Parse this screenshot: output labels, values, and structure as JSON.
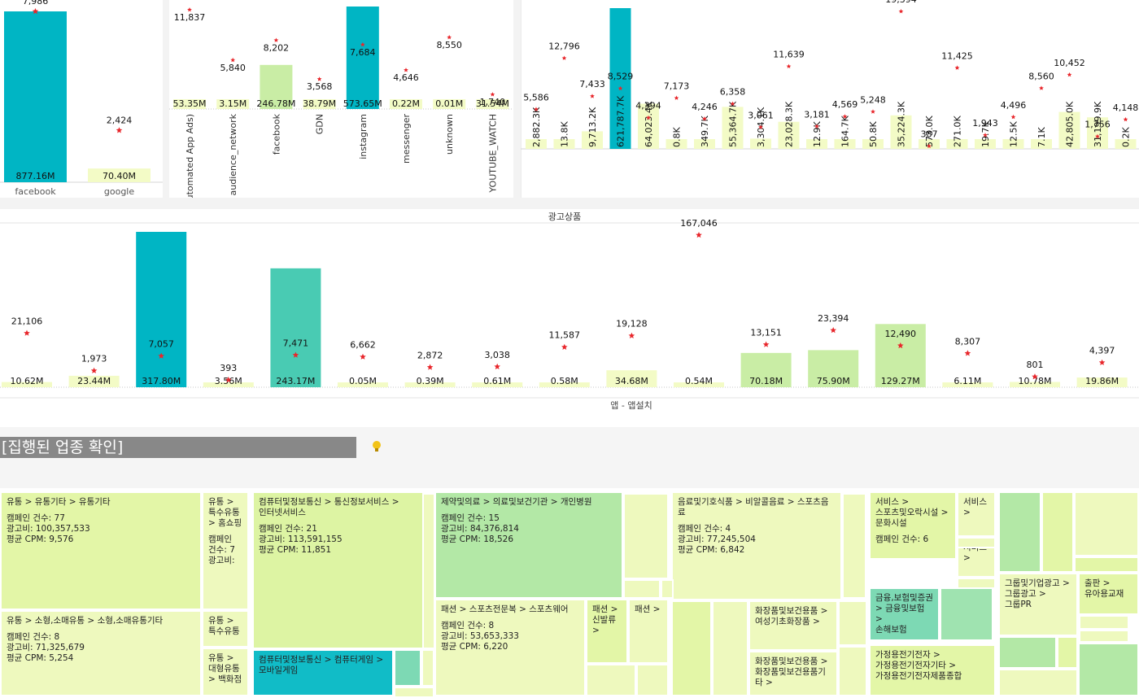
{
  "colors": {
    "teal": "#00b5c4",
    "mint": "#49cbb3",
    "light_green": "#c9eda5",
    "pale_yellow": "#f3fbc6",
    "star": "#e8262b",
    "tm_lime": "#e3f6a7",
    "tm_pale": "#eef9be",
    "tm_green": "#b3e8a6",
    "tm_mint": "#7dd9b4",
    "tm_teal": "#11bcc7"
  },
  "chart_data": [
    {
      "type": "bar",
      "id": "platform",
      "categories": [
        "facebook",
        "google"
      ],
      "values": [
        877.16,
        70.4
      ],
      "value_labels": [
        "877.16M",
        "70.40M"
      ],
      "secondary": [
        7986,
        2424
      ],
      "secondary_labels": [
        "7,986",
        "2,424"
      ],
      "bar_colors": [
        "#00b5c4",
        "#f3fbc6"
      ]
    },
    {
      "type": "bar",
      "id": "placement",
      "categories": [
        "All (Automated App Ads)",
        "audience_network",
        "facebook",
        "GDN",
        "instagram",
        "messenger",
        "unknown",
        "YOUTUBE_WATCH"
      ],
      "values": [
        53.35,
        3.15,
        246.78,
        38.79,
        573.65,
        0.22,
        0.01,
        31.54
      ],
      "value_labels": [
        "53.35M",
        "3.15M",
        "246.78M",
        "38.79M",
        "573.65M",
        "0.22M",
        "0.01M",
        "31.54M"
      ],
      "secondary": [
        11837,
        5840,
        8202,
        3568,
        7684,
        4646,
        8550,
        1740
      ],
      "secondary_labels": [
        "11,837",
        "5,840",
        "8,202",
        "3,568",
        "7,684",
        "4,646",
        "8,550",
        "1,740"
      ],
      "bar_colors": [
        "#f3fbc6",
        "#f3fbc6",
        "#c9eda5",
        "#f3fbc6",
        "#00b5c4",
        "#f3fbc6",
        "#f3fbc6",
        "#f3fbc6"
      ]
    },
    {
      "type": "bar",
      "id": "detail",
      "value_labels": [
        "2,882.3K",
        "13.8K",
        "9,713.2K",
        "621,787.7K",
        "64,023.4K",
        "0.8K",
        "349.7K",
        "55,364.7K",
        "3,304.1K",
        "23,028.3K",
        "12.9K",
        "164.7K",
        "50.8K",
        "35,224.3K",
        "573.0K",
        "271.0K",
        "19.7K",
        "12.5K",
        "7.1K",
        "42,805.0K",
        "31,199.9K",
        "0.2K"
      ],
      "values": [
        2882.3,
        13.8,
        9713.2,
        621787.7,
        64023.4,
        0.8,
        349.7,
        55364.7,
        3304.1,
        23028.3,
        12.9,
        164.7,
        50.8,
        35224.3,
        573.0,
        271.0,
        19.7,
        12.5,
        7.1,
        42805.0,
        31199.9,
        0.2
      ],
      "secondary": [
        5586,
        12796,
        7433,
        8529,
        4394,
        7173,
        4246,
        6358,
        3061,
        11639,
        3181,
        4569,
        5248,
        19394,
        387,
        11425,
        1943,
        4496,
        8560,
        10452,
        1756,
        4148
      ],
      "secondary_labels": [
        "5,586",
        "12,796",
        "7,433",
        "8,529",
        "4,394",
        "7,173",
        "4,246",
        "6,358",
        "3,061",
        "11,639",
        "3,181",
        "4,569",
        "5,248",
        "19,394",
        "387",
        "11,425",
        "1,943",
        "4,496",
        "8,560",
        "10,452",
        "1,756",
        "4,148"
      ],
      "bar_colors": [
        "#f3fbc6",
        "#f3fbc6",
        "#f3fbc6",
        "#00b5c4",
        "#f3fbc6",
        "#f3fbc6",
        "#f3fbc6",
        "#f3fbc6",
        "#f3fbc6",
        "#f3fbc6",
        "#f3fbc6",
        "#f3fbc6",
        "#f3fbc6",
        "#f3fbc6",
        "#f3fbc6",
        "#f3fbc6",
        "#f3fbc6",
        "#f3fbc6",
        "#f3fbc6",
        "#f3fbc6",
        "#f3fbc6",
        "#f3fbc6"
      ]
    },
    {
      "type": "bar",
      "id": "ad_product",
      "title": "광고상품",
      "xlabel": "앱 - 앱설치",
      "values": [
        10.62,
        23.44,
        317.8,
        3.56,
        243.17,
        0.05,
        0.39,
        0.61,
        0.58,
        34.68,
        0.54,
        70.18,
        75.9,
        129.27,
        6.11,
        10.78,
        19.86
      ],
      "value_labels": [
        "10.62M",
        "23.44M",
        "317.80M",
        "3.56M",
        "243.17M",
        "0.05M",
        "0.39M",
        "0.61M",
        "0.58M",
        "34.68M",
        "0.54M",
        "70.18M",
        "75.90M",
        "129.27M",
        "6.11M",
        "10.78M",
        "19.86M"
      ],
      "secondary": [
        21106,
        1973,
        7057,
        393,
        7471,
        6662,
        2872,
        3038,
        11587,
        19128,
        167046,
        13151,
        23394,
        12490,
        8307,
        801,
        4397
      ],
      "secondary_labels": [
        "21,106",
        "1,973",
        "7,057",
        "393",
        "7,471",
        "6,662",
        "2,872",
        "3,038",
        "11,587",
        "19,128",
        "167,046",
        "13,151",
        "23,394",
        "12,490",
        "8,307",
        "801",
        "4,397"
      ],
      "bar_colors": [
        "#f3fbc6",
        "#f3fbc6",
        "#00b5c4",
        "#f3fbc6",
        "#49cbb3",
        "#f3fbc6",
        "#f3fbc6",
        "#f3fbc6",
        "#f3fbc6",
        "#f3fbc6",
        "#f3fbc6",
        "#c9eda5",
        "#c9eda5",
        "#c9eda5",
        "#f3fbc6",
        "#f3fbc6",
        "#f3fbc6"
      ]
    }
  ],
  "section": {
    "title": "[집행된 업종 확인]",
    "bulb_icon": "lightbulb-icon"
  },
  "treemap": {
    "cells": [
      {
        "path": "유통 > 유통기타 > 유통기타",
        "campaigns": "캠페인 건수: 77",
        "spend": "광고비: 100,357,533",
        "cpm": "평균 CPM: 9,576",
        "color": "#e3f6a7"
      },
      {
        "path": "유통 > 소형,소매유통 > 소형,소매유통기타",
        "campaigns": "캠페인 건수: 8",
        "spend": "광고비: 71,325,679",
        "cpm": "평균 CPM: 5,254",
        "color": "#eef9be"
      },
      {
        "path": "유통 >\n특수유통\n> 홈쇼핑",
        "campaigns": "캠페인\n건수: 7",
        "spend": "광고비:",
        "cpm": "",
        "color": "#eef9be"
      },
      {
        "path": "유통 >\n특수유통",
        "color": "#eef9be"
      },
      {
        "path": "유통 >\n대형유통\n> 백화점",
        "color": "#eef9be"
      },
      {
        "path": "컴퓨터및정보통신 > 통신정보서비스 >\n인터넷서비스",
        "campaigns": "캠페인 건수: 21",
        "spend": "광고비: 113,591,155",
        "cpm": "평균 CPM: 11,851",
        "color": "#ddf4a3"
      },
      {
        "path": "컴퓨터및정보통신 > 컴퓨터게임 >\n모바일게임",
        "color": "#11bcc7"
      },
      {
        "path": "제약및의료 > 의료및보건기관 > 개인병원",
        "campaigns": "캠페인 건수: 15",
        "spend": "광고비: 84,376,814",
        "cpm": "평균 CPM: 18,526",
        "color": "#b3e8a6"
      },
      {
        "path": "패션 > 스포츠전문복 > 스포츠웨어",
        "campaigns": "캠페인 건수: 8",
        "spend": "광고비: 53,653,333",
        "cpm": "평균 CPM: 6,220",
        "color": "#eef9be"
      },
      {
        "path": "패션 >\n신발류\n>",
        "color": "#e3f6a7"
      },
      {
        "path": "패션 >",
        "color": "#eef9be"
      },
      {
        "path": "음료및기호식품 > 비알콜음료 > 스포츠음료",
        "campaigns": "캠페인 건수: 4",
        "spend": "광고비: 77,245,504",
        "cpm": "평균 CPM: 6,842",
        "color": "#eef9be"
      },
      {
        "path": "화장품및보건용품 >\n여성기초화장품 >",
        "color": "#eef9be"
      },
      {
        "path": "화장품및보건용품 >\n화장품및보건용품기타 >",
        "color": "#eef9be"
      },
      {
        "path": "서비스 >\n스포츠및오락시설 >\n문화시설",
        "campaigns": "캠페인 건수: 6",
        "color": "#e3f6a7"
      },
      {
        "path": "서비스\n>",
        "color": "#eef9be"
      },
      {
        "path": "서비스\n>",
        "color": "#eef9be"
      },
      {
        "path": "금융,보험및증권\n> 금융및보험 >\n손해보험",
        "color": "#7dd9b4"
      },
      {
        "path": "가정용전기전자 >\n가정용전기전자기타 >\n가정용전기전자제품종합",
        "color": "#e3f6a7"
      },
      {
        "path": "그룹및기업광고 >\n그룹광고 >\n그룹PR",
        "color": "#eef9be"
      },
      {
        "path": "출판 >\n유아용교재",
        "color": "#e3f6a7"
      }
    ]
  }
}
